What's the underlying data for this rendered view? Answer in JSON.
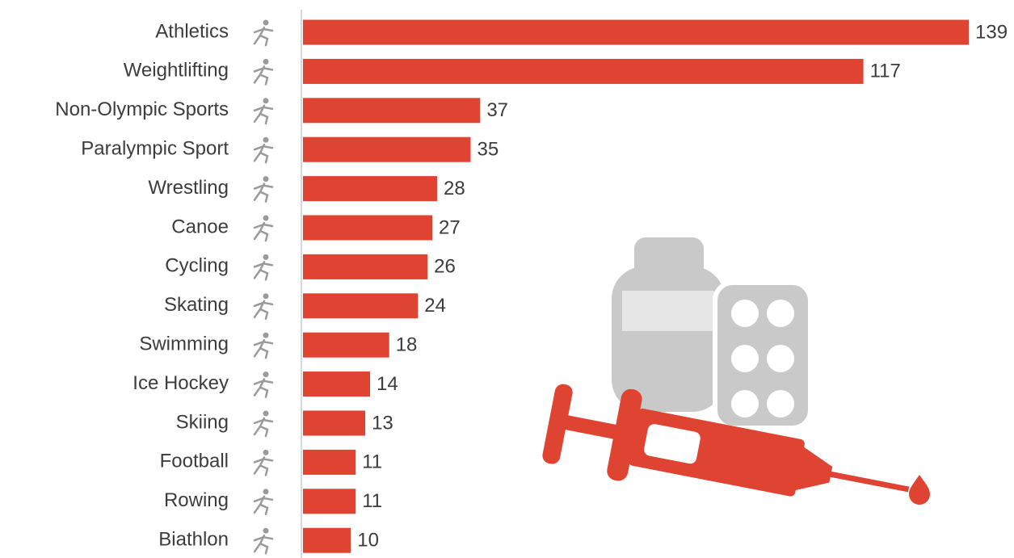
{
  "chart_data": {
    "type": "bar",
    "orientation": "horizontal",
    "categories": [
      "Athletics",
      "Weightlifting",
      "Non-Olympic Sports",
      "Paralympic Sport",
      "Wrestling",
      "Canoe",
      "Cycling",
      "Skating",
      "Swimming",
      "Ice Hockey",
      "Skiing",
      "Football",
      "Rowing",
      "Biathlon"
    ],
    "values": [
      139,
      117,
      37,
      35,
      28,
      27,
      26,
      24,
      18,
      14,
      13,
      11,
      11,
      10
    ],
    "color": "#df4331"
  }
}
